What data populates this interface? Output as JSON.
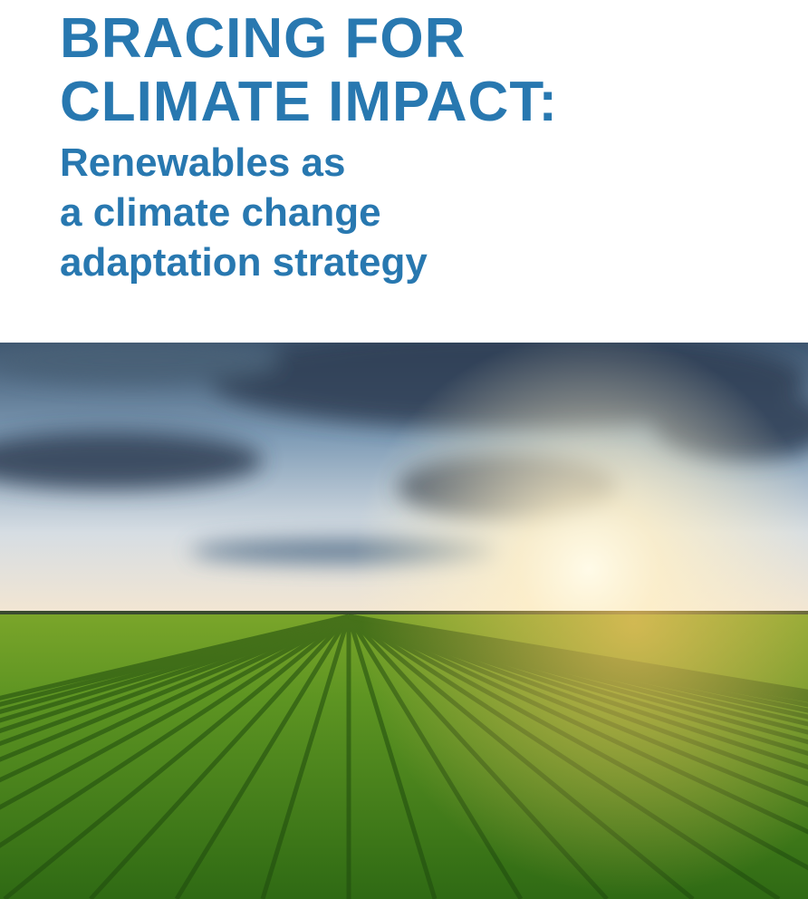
{
  "cover": {
    "title_lines": [
      "BRACING FOR",
      "CLIMATE IMPACT:"
    ],
    "subtitle_lines": [
      "Renewables as",
      "a climate change",
      "adaptation strategy"
    ],
    "accent_color": "#2878b0"
  },
  "photo": {
    "subject": "crop-field-irrigation-sunset"
  }
}
